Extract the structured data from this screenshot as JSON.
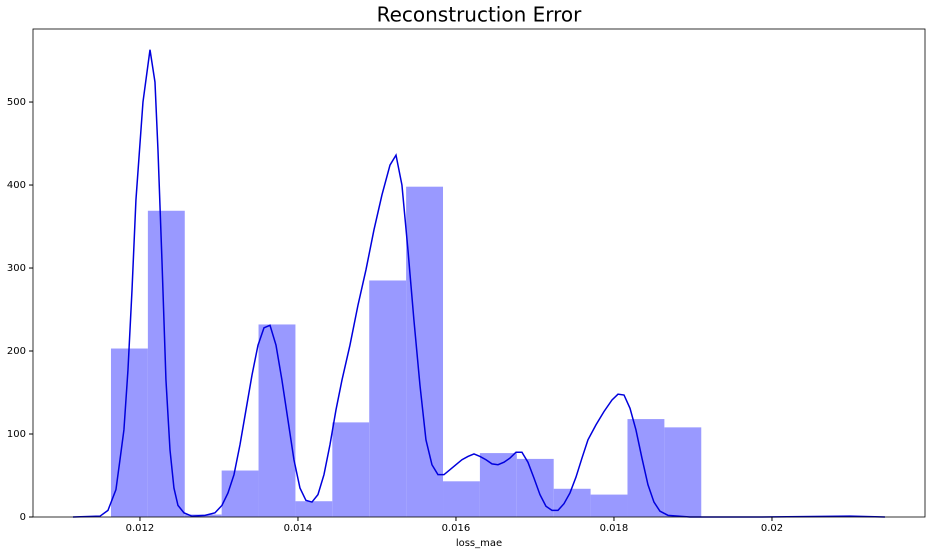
{
  "chart_data": {
    "type": "histogram",
    "title": "Reconstruction Error",
    "xlabel": "loss_mae",
    "bins": [
      0.011633,
      0.0121,
      0.012567,
      0.013034,
      0.013501,
      0.013968,
      0.014435,
      0.014902,
      0.015369,
      0.015836,
      0.016303,
      0.01677,
      0.017237,
      0.017704,
      0.018171,
      0.018638,
      0.019105
    ],
    "values": [
      203,
      369,
      3,
      56,
      232,
      19,
      114,
      285,
      398,
      43,
      77,
      70,
      34,
      27,
      118,
      108
    ],
    "color": "#9999ff",
    "line": {
      "color": "#0000dd",
      "x": [
        0.011152,
        0.011494,
        0.011595,
        0.011696,
        0.011747,
        0.011797,
        0.011848,
        0.011899,
        0.011949,
        0.012038,
        0.012127,
        0.01219,
        0.012228,
        0.012278,
        0.012329,
        0.01238,
        0.01243,
        0.012481,
        0.012557,
        0.012658,
        0.012823,
        0.012949,
        0.013038,
        0.013114,
        0.01319,
        0.013266,
        0.013342,
        0.013418,
        0.013494,
        0.01357,
        0.013646,
        0.013722,
        0.013797,
        0.013873,
        0.013949,
        0.014025,
        0.014101,
        0.014177,
        0.014253,
        0.014329,
        0.014405,
        0.014481,
        0.014557,
        0.014658,
        0.014759,
        0.014861,
        0.014962,
        0.015063,
        0.015165,
        0.015241,
        0.015316,
        0.015392,
        0.015468,
        0.015544,
        0.01562,
        0.015696,
        0.015772,
        0.015848,
        0.015924,
        0.016,
        0.016076,
        0.016152,
        0.016228,
        0.016304,
        0.01638,
        0.016456,
        0.016532,
        0.016608,
        0.016684,
        0.01676,
        0.016835,
        0.016911,
        0.016987,
        0.017063,
        0.017139,
        0.017215,
        0.017291,
        0.017367,
        0.017443,
        0.017519,
        0.017595,
        0.017671,
        0.017772,
        0.017873,
        0.017975,
        0.018051,
        0.018127,
        0.018203,
        0.018278,
        0.018354,
        0.01843,
        0.018506,
        0.018582,
        0.018684,
        0.018962,
        0.019848,
        0.020987,
        0.02143
      ],
      "values": [
        0,
        1,
        8,
        33,
        69,
        105,
        177,
        273,
        382,
        500,
        563,
        524,
        442,
        310,
        165,
        81,
        35,
        14,
        5,
        1,
        2,
        5,
        14,
        29,
        51,
        87,
        129,
        171,
        207,
        228,
        231,
        207,
        165,
        117,
        69,
        35,
        20,
        18,
        27,
        51,
        87,
        129,
        165,
        207,
        255,
        298,
        346,
        388,
        424,
        436,
        400,
        322,
        237,
        159,
        93,
        63,
        51,
        51,
        57,
        63,
        69,
        73,
        76,
        73,
        69,
        64,
        63,
        66,
        71,
        78,
        78,
        66,
        47,
        27,
        13,
        8,
        8,
        16,
        29,
        48,
        71,
        93,
        111,
        127,
        141,
        148,
        147,
        131,
        105,
        71,
        39,
        18,
        7,
        2,
        0,
        0,
        1,
        0
      ]
    },
    "xlim": [
      0.010646,
      0.021937
    ],
    "xticks": [
      0.012,
      0.014,
      0.016,
      0.018,
      0.02
    ],
    "ylim": [
      0,
      588
    ],
    "yticks": [
      0,
      100,
      200,
      300,
      400,
      500
    ]
  }
}
